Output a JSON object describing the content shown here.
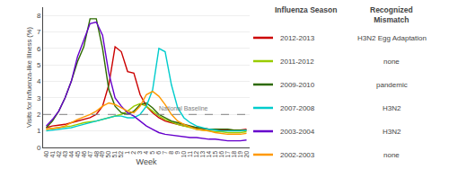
{
  "chart_data": {
    "type": "line",
    "xlabel": "Week",
    "ylabel": "Visits for Influenza-like Illness (%)",
    "categories": [
      "40",
      "41",
      "42",
      "43",
      "44",
      "45",
      "46",
      "47",
      "48",
      "49",
      "50",
      "51",
      "52",
      "1",
      "2",
      "3",
      "4",
      "5",
      "6",
      "7",
      "8",
      "9",
      "10",
      "11",
      "12",
      "13",
      "14",
      "15",
      "16",
      "17",
      "18",
      "19",
      "20"
    ],
    "series": [
      {
        "name": "2012-2013",
        "mismatch": "H3N2 Egg Adaptation",
        "color": "#cc0000",
        "values": [
          1.2,
          1.3,
          1.35,
          1.4,
          1.5,
          1.6,
          1.7,
          1.8,
          2.0,
          2.5,
          3.8,
          6.1,
          5.8,
          4.6,
          4.5,
          3.2,
          2.5,
          2.1,
          1.8,
          1.6,
          1.5,
          1.4,
          1.3,
          1.25,
          1.2,
          1.15,
          1.1,
          1.1,
          1.05,
          1.05,
          1.05,
          1.05,
          1.1
        ]
      },
      {
        "name": "2011-2012",
        "mismatch": "none",
        "color": "#99cc00",
        "values": [
          1.1,
          1.15,
          1.2,
          1.25,
          1.3,
          1.4,
          1.5,
          1.55,
          1.6,
          1.7,
          1.8,
          1.9,
          2.0,
          2.2,
          2.5,
          2.65,
          2.5,
          2.2,
          1.9,
          1.7,
          1.55,
          1.4,
          1.3,
          1.2,
          1.1,
          1.05,
          1.0,
          0.95,
          0.95,
          0.9,
          0.9,
          0.9,
          0.95
        ]
      },
      {
        "name": "2009-2010",
        "mismatch": "pandemic",
        "color": "#2d6a00",
        "values": [
          1.2,
          1.6,
          2.2,
          3.0,
          4.0,
          5.2,
          6.1,
          7.8,
          7.8,
          6.0,
          3.5,
          2.5,
          2.1,
          2.0,
          2.2,
          2.6,
          2.7,
          2.4,
          2.0,
          1.8,
          1.6,
          1.5,
          1.4,
          1.3,
          1.2,
          1.15,
          1.1,
          1.1,
          1.1,
          1.1,
          1.05,
          1.05,
          1.05
        ]
      },
      {
        "name": "2007-2008",
        "mismatch": "H3N2",
        "color": "#00cccc",
        "values": [
          1.0,
          1.05,
          1.1,
          1.15,
          1.2,
          1.3,
          1.4,
          1.5,
          1.6,
          1.7,
          1.8,
          1.9,
          1.9,
          1.8,
          1.8,
          2.0,
          2.5,
          3.5,
          6.0,
          5.8,
          3.8,
          2.4,
          1.8,
          1.5,
          1.3,
          1.2,
          1.1,
          1.05,
          1.0,
          1.0,
          1.0,
          1.0,
          1.05
        ]
      },
      {
        "name": "2003-2004",
        "mismatch": "H3N2",
        "color": "#6600cc",
        "values": [
          1.3,
          1.7,
          2.2,
          3.0,
          4.0,
          5.5,
          6.5,
          7.5,
          7.6,
          6.8,
          4.5,
          3.0,
          2.5,
          2.1,
          1.9,
          1.6,
          1.3,
          1.1,
          0.9,
          0.8,
          0.75,
          0.7,
          0.65,
          0.6,
          0.6,
          0.55,
          0.5,
          0.5,
          0.45,
          0.4,
          0.4,
          0.4,
          0.45
        ]
      },
      {
        "name": "2002-2003",
        "mismatch": "none",
        "color": "#ff9900",
        "values": [
          1.1,
          1.15,
          1.2,
          1.3,
          1.5,
          1.7,
          1.85,
          2.0,
          2.2,
          2.5,
          2.7,
          2.6,
          2.4,
          2.2,
          2.1,
          2.5,
          3.2,
          3.4,
          3.1,
          2.6,
          2.0,
          1.6,
          1.4,
          1.25,
          1.1,
          1.05,
          1.0,
          0.9,
          0.85,
          0.8,
          0.8,
          0.8,
          0.85
        ]
      }
    ],
    "ylim": [
      0,
      8.5
    ],
    "yticks": [
      0,
      1,
      2,
      3,
      4,
      5,
      6,
      7,
      8
    ],
    "grid": true,
    "hlines": [
      {
        "value": 2.0,
        "label": "National Baseline",
        "label_at": "10",
        "line_style": "dashed",
        "color": "gray"
      }
    ],
    "legend_titles": [
      "Influenza Season",
      "Recognized\nMismatch"
    ]
  }
}
